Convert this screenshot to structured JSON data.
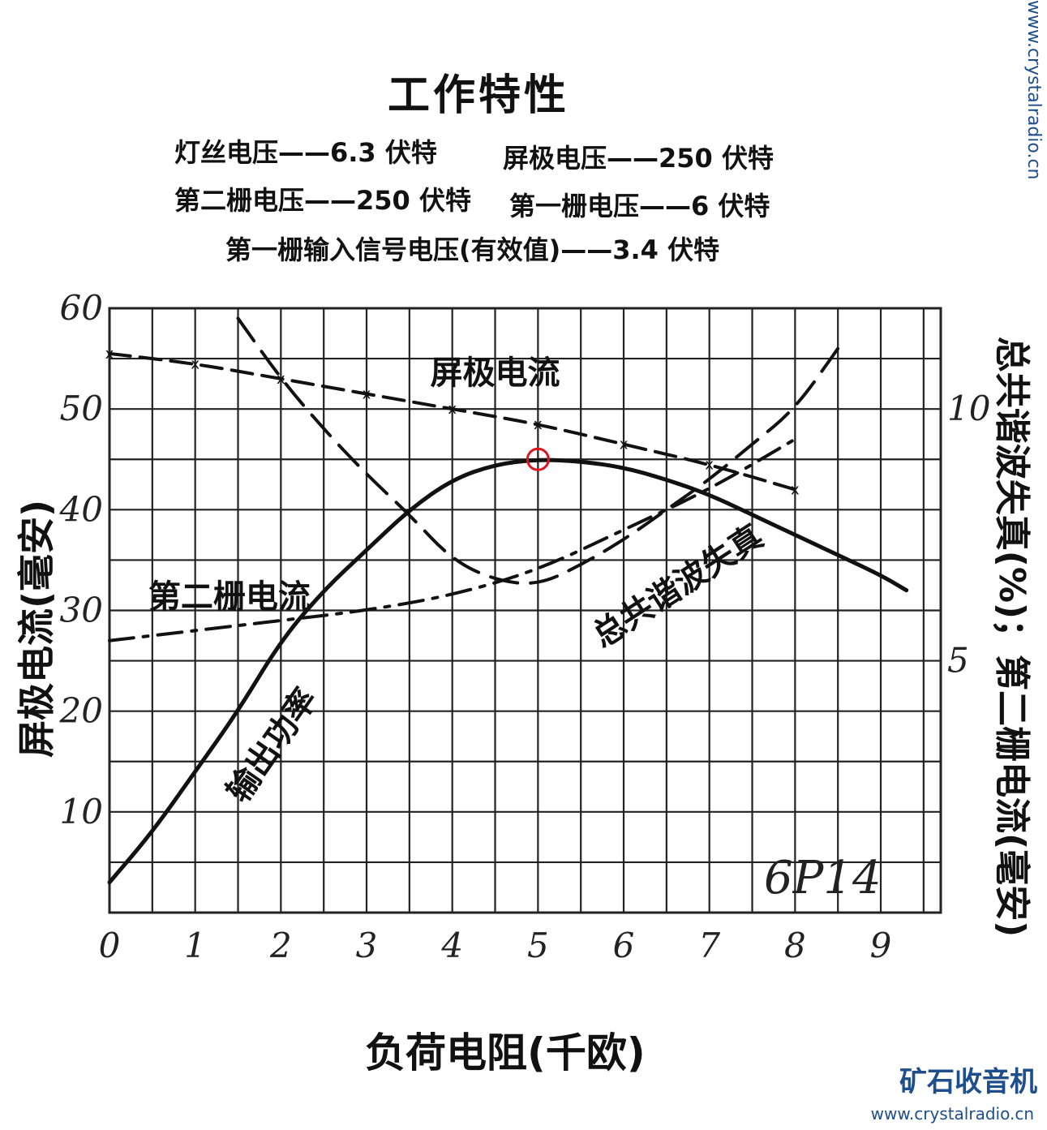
{
  "title": "工作特性",
  "conditions": {
    "heater": "灯丝电压——6.3 伏特",
    "plate": "屏极电压——250 伏特",
    "screen": "第二栅电压——250 伏特",
    "grid1": "第一栅电压——6 伏特",
    "signal": "第一栅输入信号电压(有效值)——3.4 伏特"
  },
  "model_label": "6P14",
  "watermark": {
    "name": "矿石收音机",
    "url": "www.crystalradio.cn"
  },
  "colors": {
    "ink": "#111111",
    "grid": "#222222",
    "highlight": "#e0141e",
    "watermark": "#1f4e8c"
  },
  "chart_data": {
    "type": "line",
    "title": "工作特性",
    "xlabel": "负荷电阻(千欧)",
    "ylabel_left": "屏极电流(毫安)",
    "ylabel_right": "总共谐波失真(%)；第二栅电流(毫安)",
    "x_ticks": [
      "0",
      "1",
      "2",
      "3",
      "4",
      "5",
      "6",
      "7",
      "8",
      "9"
    ],
    "y_left_ticks": [
      "10",
      "20",
      "30",
      "40",
      "50",
      "60"
    ],
    "y_right_ticks": [
      "5",
      "10"
    ],
    "xlim": [
      0,
      9.7
    ],
    "ylim_left": [
      0,
      60
    ],
    "ylim_right": [
      0,
      12
    ],
    "grid": true,
    "series": [
      {
        "name": "屏极电流",
        "axis": "left",
        "style": "dash-x",
        "x": [
          0,
          1,
          2,
          3,
          4,
          5,
          6,
          7,
          8
        ],
        "y": [
          55.5,
          54.5,
          53,
          51.5,
          50,
          48.5,
          46.5,
          44.5,
          42
        ]
      },
      {
        "name": "输出功率",
        "axis": "left",
        "style": "solid",
        "x": [
          0,
          0.5,
          1,
          1.5,
          2,
          2.5,
          3,
          3.5,
          4,
          4.5,
          5,
          5.5,
          6,
          6.5,
          7,
          7.5,
          8,
          8.5,
          9,
          9.3
        ],
        "y": [
          3,
          8,
          14,
          20,
          27,
          32,
          36,
          40,
          43,
          44.5,
          45,
          44.8,
          44.2,
          43,
          41.5,
          39.5,
          37.5,
          35.5,
          33.5,
          32
        ]
      },
      {
        "name": "第二栅电流",
        "axis": "right",
        "style": "dash-dot",
        "x": [
          0,
          1,
          2,
          3,
          4,
          5,
          6,
          7,
          8
        ],
        "y": [
          5.4,
          5.6,
          5.8,
          6.0,
          6.3,
          6.8,
          7.6,
          8.4,
          9.4
        ]
      },
      {
        "name": "总共谐波失真",
        "axis": "right",
        "style": "dash",
        "x": [
          1.5,
          2,
          2.5,
          3,
          3.5,
          4,
          4.5,
          5,
          5.5,
          6,
          6.5,
          7,
          7.5,
          8,
          8.5
        ],
        "y": [
          11.8,
          10.6,
          9.6,
          8.7,
          7.9,
          7.0,
          6.6,
          6.5,
          6.9,
          7.4,
          8.0,
          8.6,
          9.3,
          10.0,
          11.2
        ]
      }
    ],
    "annotations": [
      {
        "text": "屏极电流",
        "series": "屏极电流"
      },
      {
        "text": "第二栅电流",
        "series": "第二栅电流"
      },
      {
        "text": "输出功率",
        "series": "输出功率"
      },
      {
        "text": "总共谐波失真",
        "series": "总共谐波失真"
      }
    ],
    "highlight": {
      "x": 5,
      "y": 45
    }
  }
}
